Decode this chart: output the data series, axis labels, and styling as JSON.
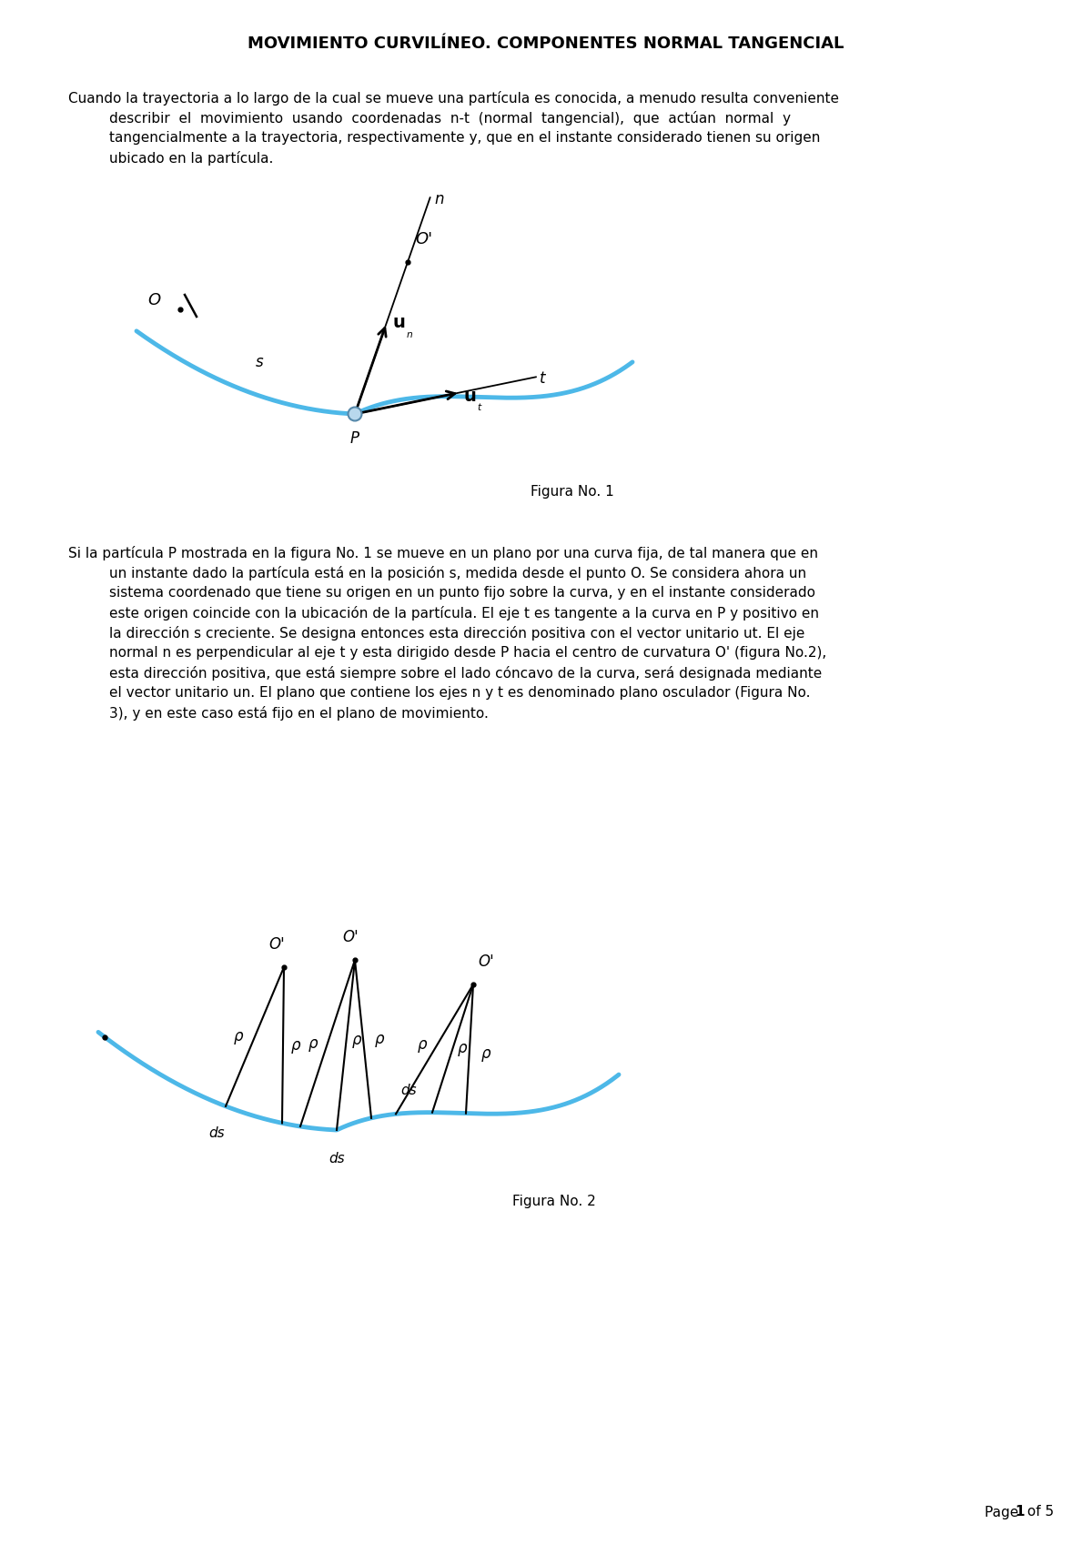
{
  "title": "MOVIMIENTO CURVILÍNEO. COMPONENTES NORMAL TANGENCIAL",
  "curve_color": "#4db8e8",
  "point_color_face": "#b8d8ed",
  "point_color_edge": "#5588aa",
  "fig1_caption": "Figura No. 1",
  "fig2_caption": "Figura No. 2",
  "page_num": "1",
  "page_total": "5"
}
